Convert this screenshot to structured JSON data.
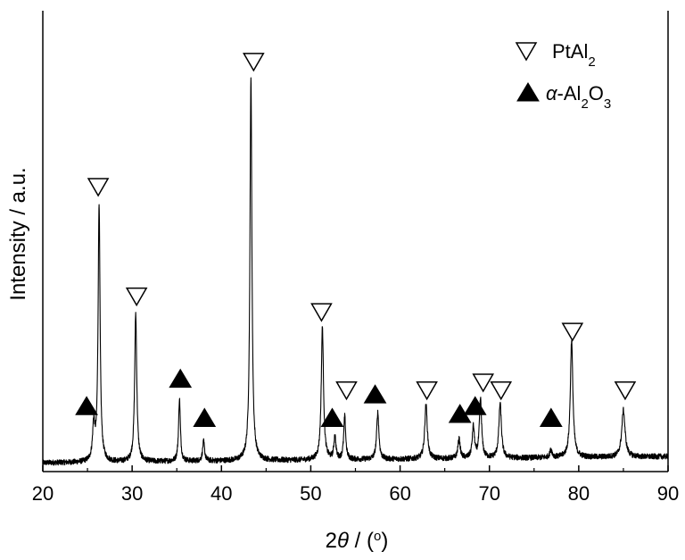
{
  "chart_data": {
    "type": "line",
    "title": "",
    "xlabel": {
      "prefix": "2",
      "symbol": "θ",
      "mid": " / (",
      "sup": "o",
      "suffix": ")"
    },
    "ylabel": "Intensity / a.u.",
    "xlim": [
      20,
      90
    ],
    "xticks": [
      20,
      30,
      40,
      50,
      60,
      70,
      80,
      90
    ],
    "ylim": [
      0,
      100
    ],
    "y_ticks_shown": false,
    "grid": false,
    "legend_position": "top-right",
    "legend": [
      {
        "marker": "open-down-triangle",
        "base": "PtAl",
        "sub": "2"
      },
      {
        "marker": "filled-up-triangle",
        "italic": "α",
        "text": "-Al",
        "sub1": "2",
        "text2": "O",
        "sub2": "3"
      }
    ],
    "baseline": 0.4,
    "noise": 0.7,
    "peaks": [
      {
        "x": 25.7,
        "height": 9,
        "width": 0.15,
        "phase": "alpha-Al2O3"
      },
      {
        "x": 26.3,
        "height": 66,
        "width": 0.13,
        "phase": "PtAl2"
      },
      {
        "x": 30.4,
        "height": 38,
        "width": 0.14,
        "phase": "PtAl2"
      },
      {
        "x": 35.3,
        "height": 16,
        "width": 0.12,
        "phase": "alpha-Al2O3"
      },
      {
        "x": 38.0,
        "height": 5,
        "width": 0.13,
        "phase": "alpha-Al2O3"
      },
      {
        "x": 43.3,
        "height": 98,
        "width": 0.13,
        "phase": "PtAl2"
      },
      {
        "x": 51.3,
        "height": 34,
        "width": 0.15,
        "phase": "PtAl2"
      },
      {
        "x": 52.7,
        "height": 6,
        "width": 0.13,
        "phase": "alpha-Al2O3"
      },
      {
        "x": 53.8,
        "height": 11,
        "width": 0.13,
        "phase": "PtAl2"
      },
      {
        "x": 57.5,
        "height": 12,
        "width": 0.15,
        "phase": "alpha-Al2O3"
      },
      {
        "x": 62.9,
        "height": 14,
        "width": 0.17,
        "phase": "PtAl2"
      },
      {
        "x": 66.6,
        "height": 5,
        "width": 0.15,
        "phase": "alpha-Al2O3"
      },
      {
        "x": 68.2,
        "height": 8,
        "width": 0.15,
        "phase": "alpha-Al2O3"
      },
      {
        "x": 69.0,
        "height": 15,
        "width": 0.15,
        "phase": "PtAl2"
      },
      {
        "x": 71.2,
        "height": 14,
        "width": 0.17,
        "phase": "PtAl2"
      },
      {
        "x": 76.9,
        "height": 2,
        "width": 0.15,
        "phase": "alpha-Al2O3"
      },
      {
        "x": 79.2,
        "height": 30,
        "width": 0.17,
        "phase": "PtAl2"
      },
      {
        "x": 85.0,
        "height": 12,
        "width": 0.22,
        "phase": "PtAl2"
      }
    ],
    "markers": [
      {
        "x": 24.9,
        "y": 15,
        "marker": "filled-up-triangle"
      },
      {
        "x": 26.2,
        "y": 71,
        "marker": "open-down-triangle"
      },
      {
        "x": 30.5,
        "y": 43,
        "marker": "open-down-triangle"
      },
      {
        "x": 35.4,
        "y": 22,
        "marker": "filled-up-triangle"
      },
      {
        "x": 38.1,
        "y": 12,
        "marker": "filled-up-triangle"
      },
      {
        "x": 43.6,
        "y": 103,
        "marker": "open-down-triangle"
      },
      {
        "x": 51.2,
        "y": 39,
        "marker": "open-down-triangle"
      },
      {
        "x": 52.4,
        "y": 12,
        "marker": "filled-up-triangle"
      },
      {
        "x": 54.0,
        "y": 19,
        "marker": "open-down-triangle"
      },
      {
        "x": 57.2,
        "y": 18,
        "marker": "filled-up-triangle"
      },
      {
        "x": 63.0,
        "y": 19,
        "marker": "open-down-triangle"
      },
      {
        "x": 66.7,
        "y": 13,
        "marker": "filled-up-triangle"
      },
      {
        "x": 68.4,
        "y": 15,
        "marker": "filled-up-triangle"
      },
      {
        "x": 69.3,
        "y": 21,
        "marker": "open-down-triangle"
      },
      {
        "x": 71.3,
        "y": 19,
        "marker": "open-down-triangle"
      },
      {
        "x": 76.9,
        "y": 12,
        "marker": "filled-up-triangle"
      },
      {
        "x": 79.3,
        "y": 34,
        "marker": "open-down-triangle"
      },
      {
        "x": 85.2,
        "y": 19,
        "marker": "open-down-triangle"
      }
    ],
    "colors": {
      "line": "#000000",
      "axis": "#000000",
      "open_marker_fill": "#ffffff",
      "filled_marker": "#000000"
    }
  }
}
